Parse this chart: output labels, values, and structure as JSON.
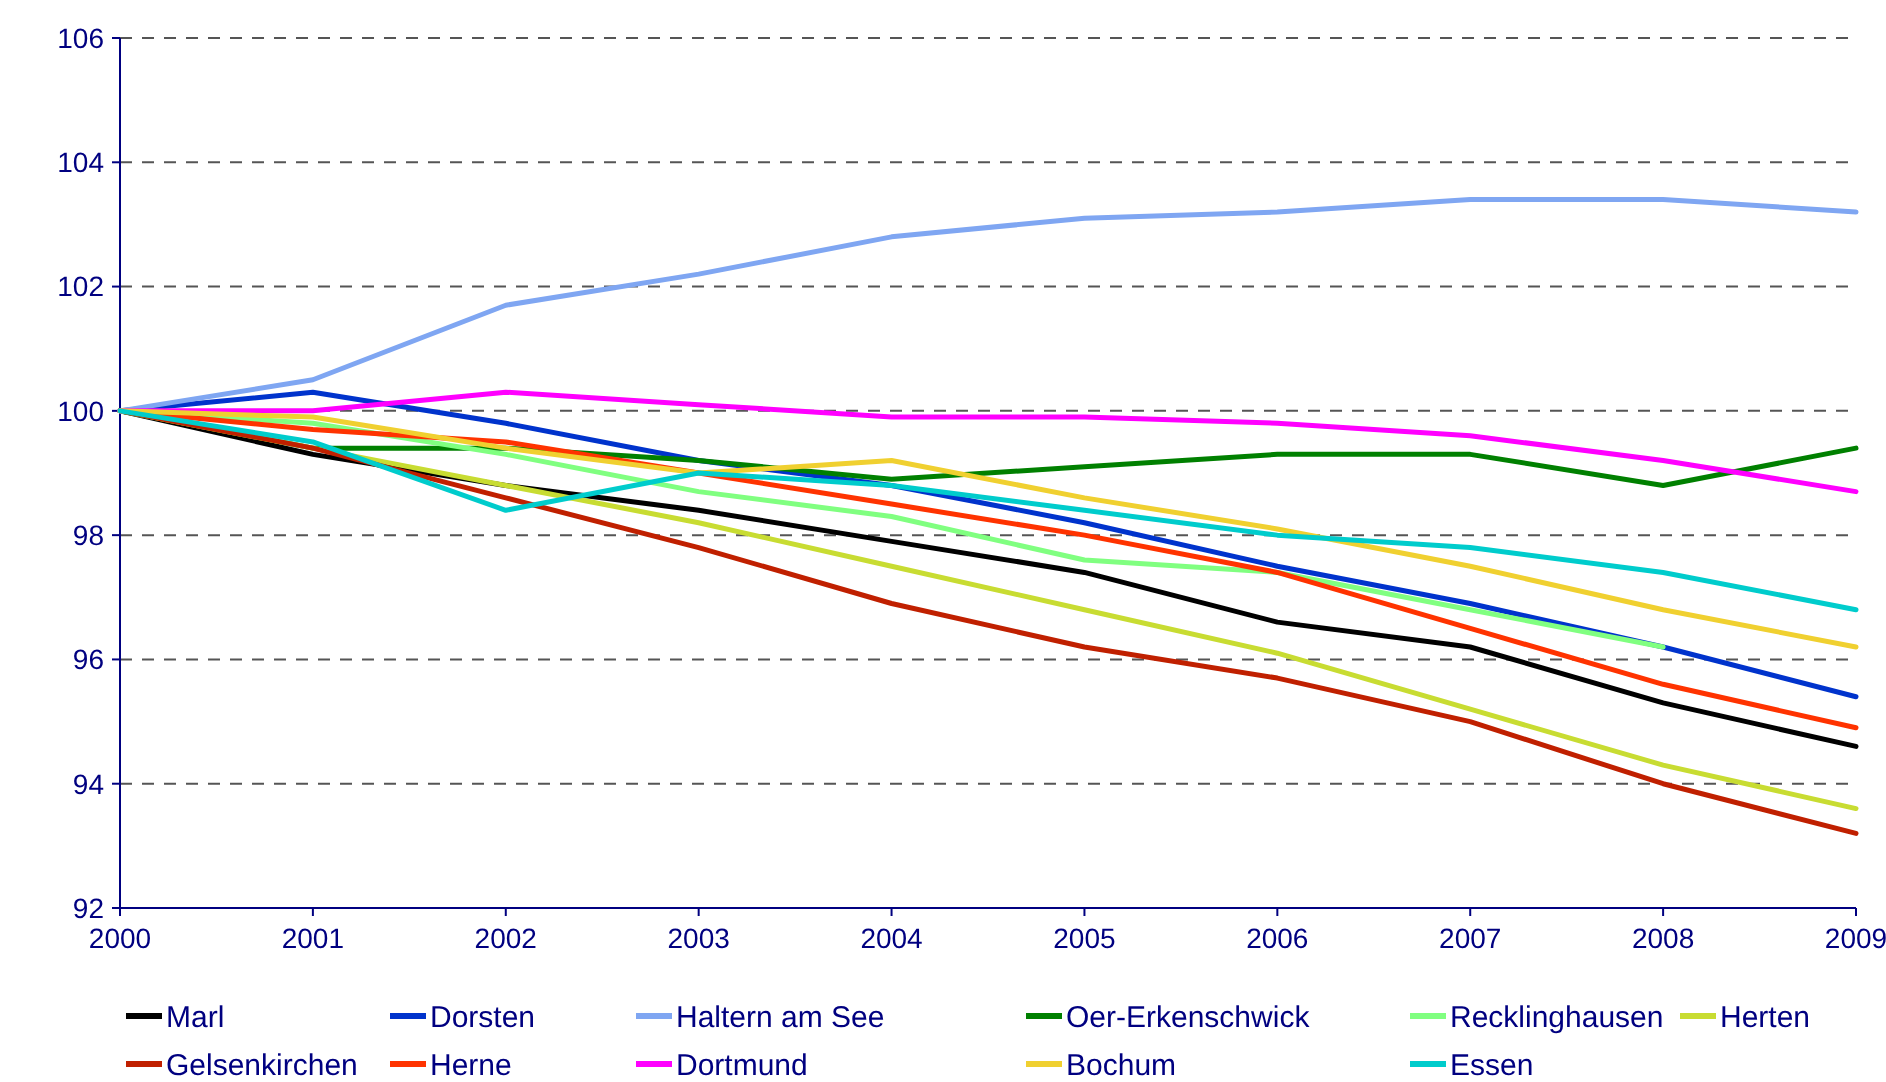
{
  "chart_data": {
    "type": "line",
    "x": [
      2000,
      2001,
      2002,
      2003,
      2004,
      2005,
      2006,
      2007,
      2008,
      2009
    ],
    "xlim": [
      2000,
      2009
    ],
    "xticks": [
      2000,
      2001,
      2002,
      2003,
      2004,
      2005,
      2006,
      2007,
      2008,
      2009
    ],
    "ylim": [
      92,
      106
    ],
    "yticks": [
      92,
      94,
      96,
      98,
      100,
      102,
      104,
      106
    ],
    "grid": "y",
    "legend": "bottom",
    "line_style": "solid",
    "marker": "none",
    "series": [
      {
        "name": "Marl",
        "color": "#000000",
        "values": [
          100,
          99.3,
          98.8,
          98.4,
          97.9,
          97.4,
          96.6,
          96.2,
          95.3,
          94.6
        ]
      },
      {
        "name": "Dorsten",
        "color": "#0033cc",
        "values": [
          100,
          100.3,
          99.8,
          99.2,
          98.8,
          98.2,
          97.5,
          96.9,
          96.2,
          95.4
        ]
      },
      {
        "name": "Haltern am See",
        "color": "#7fa6f2",
        "values": [
          100,
          100.5,
          101.7,
          102.2,
          102.8,
          103.1,
          103.2,
          103.4,
          103.4,
          103.2
        ]
      },
      {
        "name": "Oer-Erkenschwick",
        "color": "#008000",
        "values": [
          100,
          99.4,
          99.4,
          99.2,
          98.9,
          99.1,
          99.3,
          99.3,
          98.8,
          99.4
        ]
      },
      {
        "name": "Recklinghausen",
        "color": "#80ff80",
        "values": [
          100,
          99.8,
          99.3,
          98.7,
          98.3,
          97.6,
          97.4,
          96.8,
          96.2,
          null
        ]
      },
      {
        "name": "Herten",
        "color": "#c8dc32",
        "values": [
          100,
          99.4,
          98.8,
          98.2,
          97.5,
          96.8,
          96.1,
          95.2,
          94.3,
          93.6
        ]
      },
      {
        "name": "Gelsenkirchen",
        "color": "#c02000",
        "values": [
          100,
          99.4,
          98.6,
          97.8,
          96.9,
          96.2,
          95.7,
          95.0,
          94.0,
          93.2
        ]
      },
      {
        "name": "Herne",
        "color": "#ff3300",
        "values": [
          100,
          99.7,
          99.5,
          99.0,
          98.5,
          98.0,
          97.4,
          96.5,
          95.6,
          94.9
        ]
      },
      {
        "name": "Dortmund",
        "color": "#ff00ff",
        "values": [
          100,
          100.0,
          100.3,
          100.1,
          99.9,
          99.9,
          99.8,
          99.6,
          99.2,
          98.7
        ]
      },
      {
        "name": "Bochum",
        "color": "#f0d030",
        "values": [
          100,
          99.9,
          99.4,
          99.0,
          99.2,
          98.6,
          98.1,
          97.5,
          96.8,
          96.2
        ]
      },
      {
        "name": "Essen",
        "color": "#00cccc",
        "values": [
          100,
          99.5,
          98.4,
          99.0,
          98.8,
          98.4,
          98.0,
          97.8,
          97.4,
          96.8
        ]
      }
    ]
  }
}
